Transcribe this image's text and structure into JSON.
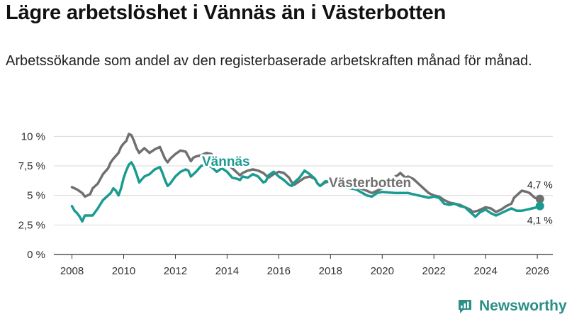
{
  "title": "Lägre arbetslöshet i Vännäs än i Västerbotten",
  "subtitle": "Arbetssökande som andel av den registerbaserade arbetskraften månad för månad.",
  "brand": {
    "name": "Newsworthy",
    "color": "#2a8f86"
  },
  "chart_data": {
    "type": "line",
    "ylim": [
      0,
      10.5
    ],
    "xlim": [
      2007.3,
      2026.6
    ],
    "y_ticks": [
      {
        "value": 0,
        "label": "0 %"
      },
      {
        "value": 2.5,
        "label": "2,5 %"
      },
      {
        "value": 5,
        "label": "5 %"
      },
      {
        "value": 7.5,
        "label": "7,5 %"
      },
      {
        "value": 10,
        "label": "10 %"
      }
    ],
    "x_ticks": [
      {
        "value": 2008,
        "label": "2008"
      },
      {
        "value": 2010,
        "label": "2010"
      },
      {
        "value": 2012,
        "label": "2012"
      },
      {
        "value": 2014,
        "label": "2014"
      },
      {
        "value": 2016,
        "label": "2016"
      },
      {
        "value": 2018,
        "label": "2018"
      },
      {
        "value": 2020,
        "label": "2020"
      },
      {
        "value": 2022,
        "label": "2022"
      },
      {
        "value": 2024,
        "label": "2024"
      },
      {
        "value": 2026,
        "label": "2026"
      }
    ],
    "series": [
      {
        "name": "Västerbotten",
        "color": "#707070",
        "end_label": "4,7 %",
        "points": [
          [
            2008.0,
            5.7
          ],
          [
            2008.2,
            5.5
          ],
          [
            2008.4,
            5.2
          ],
          [
            2008.5,
            4.9
          ],
          [
            2008.7,
            5.1
          ],
          [
            2008.8,
            5.6
          ],
          [
            2009.0,
            6.0
          ],
          [
            2009.2,
            6.8
          ],
          [
            2009.4,
            7.3
          ],
          [
            2009.5,
            7.8
          ],
          [
            2009.6,
            8.1
          ],
          [
            2009.8,
            8.6
          ],
          [
            2009.9,
            9.1
          ],
          [
            2010.0,
            9.4
          ],
          [
            2010.1,
            9.6
          ],
          [
            2010.2,
            10.2
          ],
          [
            2010.3,
            10.1
          ],
          [
            2010.4,
            9.6
          ],
          [
            2010.5,
            9.0
          ],
          [
            2010.6,
            8.6
          ],
          [
            2010.8,
            9.0
          ],
          [
            2011.0,
            8.6
          ],
          [
            2011.2,
            8.9
          ],
          [
            2011.4,
            9.1
          ],
          [
            2011.5,
            8.6
          ],
          [
            2011.6,
            8.1
          ],
          [
            2011.7,
            7.8
          ],
          [
            2011.8,
            8.1
          ],
          [
            2012.0,
            8.5
          ],
          [
            2012.2,
            8.8
          ],
          [
            2012.4,
            8.7
          ],
          [
            2012.5,
            8.3
          ],
          [
            2012.6,
            7.9
          ],
          [
            2012.7,
            8.2
          ],
          [
            2012.8,
            8.3
          ],
          [
            2013.0,
            8.4
          ],
          [
            2013.2,
            8.6
          ],
          [
            2013.4,
            8.5
          ],
          [
            2013.5,
            8.0
          ],
          [
            2013.6,
            7.7
          ],
          [
            2013.8,
            7.5
          ],
          [
            2014.0,
            7.6
          ],
          [
            2014.2,
            7.3
          ],
          [
            2014.4,
            6.9
          ],
          [
            2014.5,
            6.7
          ],
          [
            2014.6,
            6.9
          ],
          [
            2014.8,
            7.1
          ],
          [
            2015.0,
            7.2
          ],
          [
            2015.2,
            7.1
          ],
          [
            2015.4,
            6.9
          ],
          [
            2015.5,
            6.7
          ],
          [
            2015.6,
            6.5
          ],
          [
            2015.8,
            6.8
          ],
          [
            2016.0,
            7.0
          ],
          [
            2016.2,
            6.9
          ],
          [
            2016.4,
            6.5
          ],
          [
            2016.5,
            6.1
          ],
          [
            2016.6,
            5.9
          ],
          [
            2016.8,
            6.2
          ],
          [
            2017.0,
            6.5
          ],
          [
            2017.2,
            6.6
          ],
          [
            2017.4,
            6.4
          ],
          [
            2017.5,
            6.0
          ],
          [
            2017.6,
            5.8
          ],
          [
            2017.8,
            6.1
          ],
          [
            2018.0,
            6.2
          ],
          [
            2018.5,
            5.9
          ],
          [
            2019.0,
            5.7
          ],
          [
            2019.4,
            5.4
          ],
          [
            2019.6,
            5.2
          ],
          [
            2019.8,
            5.4
          ],
          [
            2020.0,
            5.6
          ],
          [
            2020.2,
            6.1
          ],
          [
            2020.4,
            6.5
          ],
          [
            2020.6,
            6.7
          ],
          [
            2020.7,
            6.9
          ],
          [
            2020.8,
            6.7
          ],
          [
            2020.9,
            6.5
          ],
          [
            2021.0,
            6.6
          ],
          [
            2021.2,
            6.4
          ],
          [
            2021.4,
            6.0
          ],
          [
            2021.6,
            5.6
          ],
          [
            2021.8,
            5.2
          ],
          [
            2022.0,
            5.0
          ],
          [
            2022.2,
            4.9
          ],
          [
            2022.4,
            4.6
          ],
          [
            2022.6,
            4.4
          ],
          [
            2022.8,
            4.3
          ],
          [
            2023.0,
            4.2
          ],
          [
            2023.2,
            4.0
          ],
          [
            2023.4,
            3.8
          ],
          [
            2023.5,
            3.6
          ],
          [
            2023.7,
            3.7
          ],
          [
            2023.9,
            3.9
          ],
          [
            2024.0,
            4.0
          ],
          [
            2024.2,
            3.9
          ],
          [
            2024.4,
            3.6
          ],
          [
            2024.6,
            3.8
          ],
          [
            2024.8,
            4.1
          ],
          [
            2025.0,
            4.3
          ],
          [
            2025.1,
            4.8
          ],
          [
            2025.3,
            5.2
          ],
          [
            2025.4,
            5.4
          ],
          [
            2025.6,
            5.3
          ],
          [
            2025.7,
            5.2
          ],
          [
            2025.9,
            4.8
          ],
          [
            2026.1,
            4.7
          ]
        ]
      },
      {
        "name": "Vännäs",
        "color": "#1a9b91",
        "end_label": "4,1 %",
        "points": [
          [
            2008.0,
            4.1
          ],
          [
            2008.1,
            3.7
          ],
          [
            2008.2,
            3.5
          ],
          [
            2008.3,
            3.2
          ],
          [
            2008.4,
            2.8
          ],
          [
            2008.5,
            3.3
          ],
          [
            2008.7,
            3.3
          ],
          [
            2008.8,
            3.3
          ],
          [
            2009.0,
            3.9
          ],
          [
            2009.2,
            4.6
          ],
          [
            2009.4,
            5.0
          ],
          [
            2009.5,
            5.2
          ],
          [
            2009.6,
            5.6
          ],
          [
            2009.7,
            5.4
          ],
          [
            2009.8,
            5.0
          ],
          [
            2009.9,
            5.6
          ],
          [
            2010.0,
            6.5
          ],
          [
            2010.1,
            7.1
          ],
          [
            2010.2,
            7.6
          ],
          [
            2010.3,
            7.8
          ],
          [
            2010.4,
            7.4
          ],
          [
            2010.5,
            6.8
          ],
          [
            2010.6,
            6.1
          ],
          [
            2010.8,
            6.6
          ],
          [
            2011.0,
            6.8
          ],
          [
            2011.2,
            7.2
          ],
          [
            2011.4,
            7.4
          ],
          [
            2011.5,
            6.9
          ],
          [
            2011.6,
            6.3
          ],
          [
            2011.7,
            5.8
          ],
          [
            2011.8,
            6.0
          ],
          [
            2012.0,
            6.6
          ],
          [
            2012.2,
            7.0
          ],
          [
            2012.4,
            7.2
          ],
          [
            2012.5,
            7.1
          ],
          [
            2012.6,
            6.6
          ],
          [
            2012.8,
            7.0
          ],
          [
            2013.0,
            7.5
          ],
          [
            2013.2,
            7.6
          ],
          [
            2013.4,
            7.4
          ],
          [
            2013.5,
            7.2
          ],
          [
            2013.6,
            7.0
          ],
          [
            2013.8,
            7.3
          ],
          [
            2014.0,
            7.0
          ],
          [
            2014.2,
            6.5
          ],
          [
            2014.4,
            6.4
          ],
          [
            2014.5,
            6.3
          ],
          [
            2014.6,
            6.6
          ],
          [
            2014.8,
            6.5
          ],
          [
            2015.0,
            6.8
          ],
          [
            2015.2,
            6.6
          ],
          [
            2015.4,
            6.1
          ],
          [
            2015.5,
            6.2
          ],
          [
            2015.6,
            6.7
          ],
          [
            2015.8,
            7.0
          ],
          [
            2016.0,
            6.6
          ],
          [
            2016.2,
            6.3
          ],
          [
            2016.4,
            5.9
          ],
          [
            2016.5,
            5.8
          ],
          [
            2016.6,
            6.1
          ],
          [
            2016.8,
            6.5
          ],
          [
            2017.0,
            7.1
          ],
          [
            2017.2,
            6.8
          ],
          [
            2017.4,
            6.4
          ],
          [
            2017.5,
            6.0
          ],
          [
            2017.6,
            5.8
          ],
          [
            2017.8,
            6.2
          ],
          [
            2018.0,
            6.2
          ],
          [
            2018.5,
            5.7
          ],
          [
            2019.0,
            5.5
          ],
          [
            2019.4,
            5.0
          ],
          [
            2019.6,
            4.9
          ],
          [
            2019.8,
            5.2
          ],
          [
            2020.0,
            5.3
          ],
          [
            2020.5,
            5.2
          ],
          [
            2021.0,
            5.2
          ],
          [
            2021.4,
            5.0
          ],
          [
            2021.6,
            4.9
          ],
          [
            2021.8,
            4.8
          ],
          [
            2022.0,
            4.9
          ],
          [
            2022.2,
            4.8
          ],
          [
            2022.4,
            4.3
          ],
          [
            2022.6,
            4.2
          ],
          [
            2022.8,
            4.3
          ],
          [
            2023.0,
            4.1
          ],
          [
            2023.2,
            4.0
          ],
          [
            2023.4,
            3.6
          ],
          [
            2023.6,
            3.2
          ],
          [
            2023.8,
            3.6
          ],
          [
            2024.0,
            3.8
          ],
          [
            2024.2,
            3.5
          ],
          [
            2024.4,
            3.3
          ],
          [
            2024.6,
            3.5
          ],
          [
            2024.8,
            3.7
          ],
          [
            2025.0,
            3.9
          ],
          [
            2025.2,
            3.7
          ],
          [
            2025.4,
            3.7
          ],
          [
            2025.6,
            3.8
          ],
          [
            2025.8,
            3.9
          ],
          [
            2026.0,
            4.0
          ],
          [
            2026.1,
            4.1
          ]
        ]
      }
    ]
  }
}
